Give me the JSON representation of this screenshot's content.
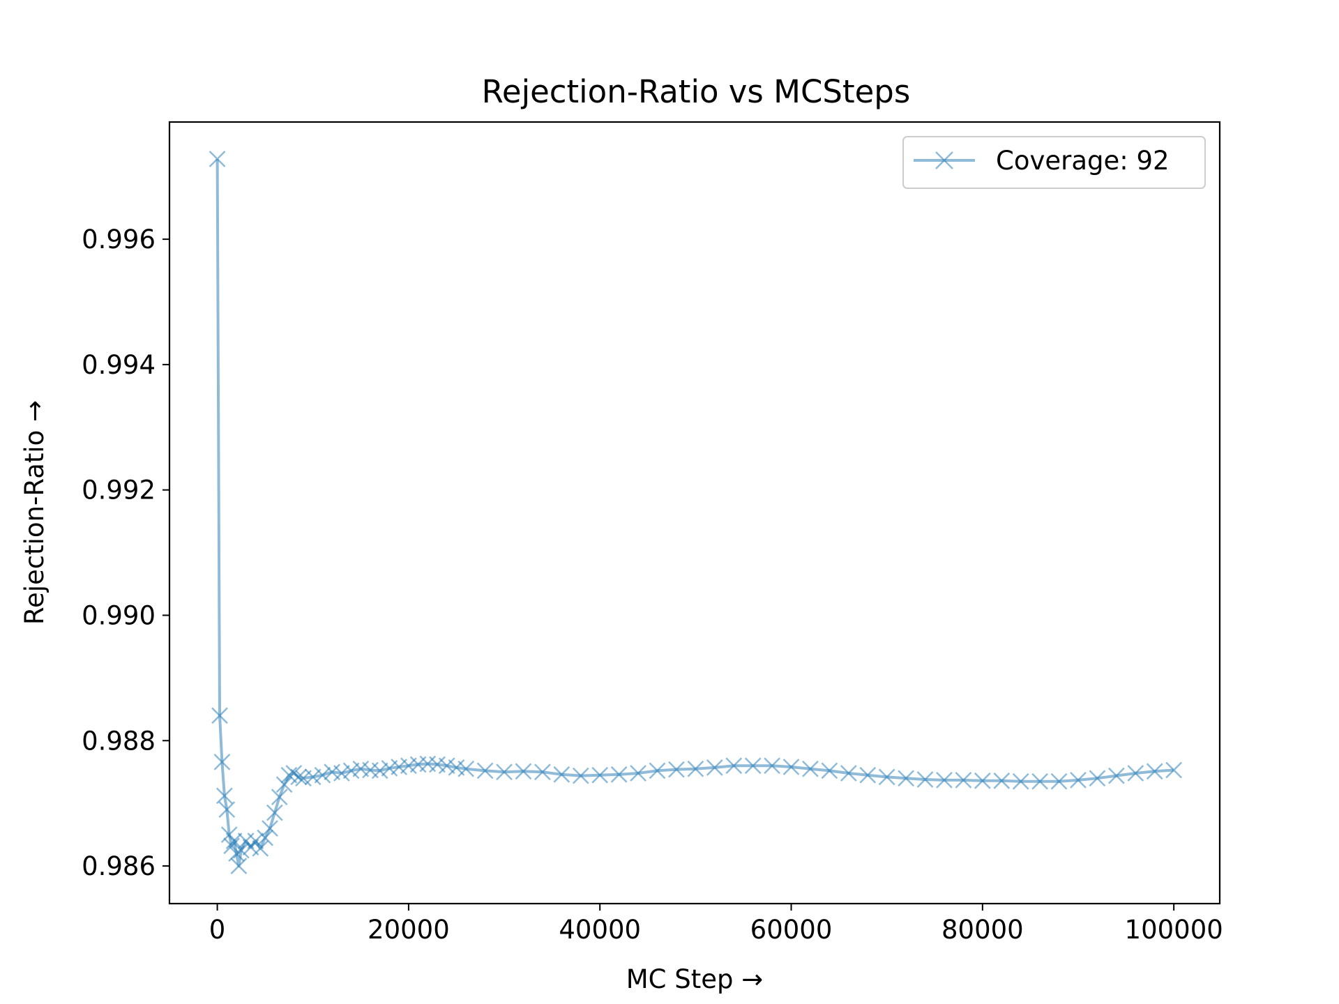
{
  "chart_data": {
    "type": "line",
    "title": "Rejection-Ratio vs MCSteps",
    "xlabel": "MC Step →",
    "ylabel": "Rejection-Ratio →",
    "xlim": [
      -5000,
      104800
    ],
    "ylim": [
      0.9854,
      0.99787
    ],
    "xticks": [
      0,
      20000,
      40000,
      60000,
      80000,
      100000
    ],
    "xtick_labels": [
      "0",
      "20000",
      "40000",
      "60000",
      "80000",
      "100000"
    ],
    "yticks": [
      0.986,
      0.988,
      0.99,
      0.992,
      0.994,
      0.996
    ],
    "ytick_labels": [
      "0.986",
      "0.988",
      "0.990",
      "0.992",
      "0.994",
      "0.996"
    ],
    "grid": false,
    "legend": "top-right",
    "marker": "x",
    "series": [
      {
        "name": "Coverage: 92",
        "color": "#1f77b4",
        "opacity": 0.5,
        "x": [
          0,
          250,
          500,
          750,
          1000,
          1250,
          1500,
          1750,
          2000,
          2250,
          2500,
          3000,
          3500,
          4000,
          4500,
          5000,
          5500,
          6000,
          6500,
          7000,
          7500,
          8000,
          8500,
          9000,
          10000,
          11000,
          12000,
          13000,
          14000,
          15000,
          16000,
          17000,
          18000,
          19000,
          20000,
          21000,
          22000,
          23000,
          24000,
          25000,
          26000,
          28000,
          30000,
          32000,
          34000,
          36000,
          38000,
          40000,
          42000,
          44000,
          46000,
          48000,
          50000,
          52000,
          54000,
          56000,
          58000,
          60000,
          62000,
          64000,
          66000,
          68000,
          70000,
          72000,
          74000,
          76000,
          78000,
          80000,
          82000,
          84000,
          86000,
          88000,
          90000,
          92000,
          94000,
          96000,
          98000,
          100000
        ],
        "y": [
          0.99728,
          0.9884,
          0.98766,
          0.98712,
          0.9869,
          0.9865,
          0.98632,
          0.9864,
          0.9862,
          0.986,
          0.98625,
          0.9864,
          0.9863,
          0.9864,
          0.98628,
          0.98645,
          0.9866,
          0.98685,
          0.9871,
          0.9873,
          0.98745,
          0.98748,
          0.98742,
          0.9874,
          0.98742,
          0.98745,
          0.9875,
          0.98748,
          0.98752,
          0.98755,
          0.98753,
          0.98752,
          0.98756,
          0.98758,
          0.9876,
          0.98762,
          0.98763,
          0.98762,
          0.9876,
          0.98757,
          0.98755,
          0.98752,
          0.9875,
          0.98751,
          0.9875,
          0.98746,
          0.98744,
          0.98745,
          0.98746,
          0.98748,
          0.98752,
          0.98754,
          0.98755,
          0.98757,
          0.9876,
          0.9876,
          0.9876,
          0.98758,
          0.98755,
          0.98752,
          0.98748,
          0.98745,
          0.98742,
          0.9874,
          0.98738,
          0.98737,
          0.98737,
          0.98736,
          0.98736,
          0.98735,
          0.98735,
          0.98735,
          0.98737,
          0.9874,
          0.98744,
          0.98748,
          0.98751,
          0.98753
        ]
      }
    ]
  }
}
